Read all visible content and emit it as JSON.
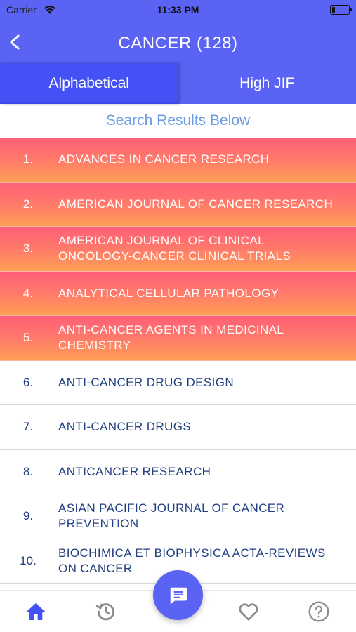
{
  "status_bar": {
    "carrier": "Carrier",
    "time": "11:33 PM"
  },
  "header": {
    "title": "CANCER (128)"
  },
  "tabs": [
    {
      "label": "Alphabetical",
      "active": true
    },
    {
      "label": "High JIF",
      "active": false
    }
  ],
  "search_banner": "Search Results Below",
  "journals": [
    {
      "num": "1.",
      "name": "ADVANCES IN CANCER RESEARCH",
      "highlighted": true
    },
    {
      "num": "2.",
      "name": "AMERICAN JOURNAL OF CANCER RESEARCH",
      "highlighted": true
    },
    {
      "num": "3.",
      "name": "AMERICAN JOURNAL OF CLINICAL ONCOLOGY-CANCER CLINICAL TRIALS",
      "highlighted": true
    },
    {
      "num": "4.",
      "name": "ANALYTICAL CELLULAR PATHOLOGY",
      "highlighted": true
    },
    {
      "num": "5.",
      "name": "ANTI-CANCER AGENTS IN MEDICINAL CHEMISTRY",
      "highlighted": true
    },
    {
      "num": "6.",
      "name": "ANTI-CANCER DRUG DESIGN",
      "highlighted": false
    },
    {
      "num": "7.",
      "name": "ANTI-CANCER DRUGS",
      "highlighted": false
    },
    {
      "num": "8.",
      "name": "ANTICANCER RESEARCH",
      "highlighted": false
    },
    {
      "num": "9.",
      "name": "ASIAN PACIFIC JOURNAL OF CANCER PREVENTION",
      "highlighted": false
    },
    {
      "num": "10.",
      "name": "BIOCHIMICA ET BIOPHYSICA ACTA-REVIEWS ON CANCER",
      "highlighted": false
    }
  ],
  "bottom_nav": {
    "items": [
      {
        "icon": "home-icon",
        "active": true
      },
      {
        "icon": "history-icon",
        "active": false
      },
      {
        "icon": "chat-icon",
        "active": false
      },
      {
        "icon": "heart-icon",
        "active": false
      },
      {
        "icon": "help-icon",
        "active": false
      }
    ]
  },
  "colors": {
    "primary": "#5a63f3",
    "active_tab": "#4452f5",
    "highlight_top": "#ff5f78",
    "highlight_bottom": "#ff9f55",
    "list_text": "#1f3f80",
    "search_text": "#6a9de6",
    "icon_gray": "#8a8a8f",
    "active_icon": "#4452f5"
  }
}
